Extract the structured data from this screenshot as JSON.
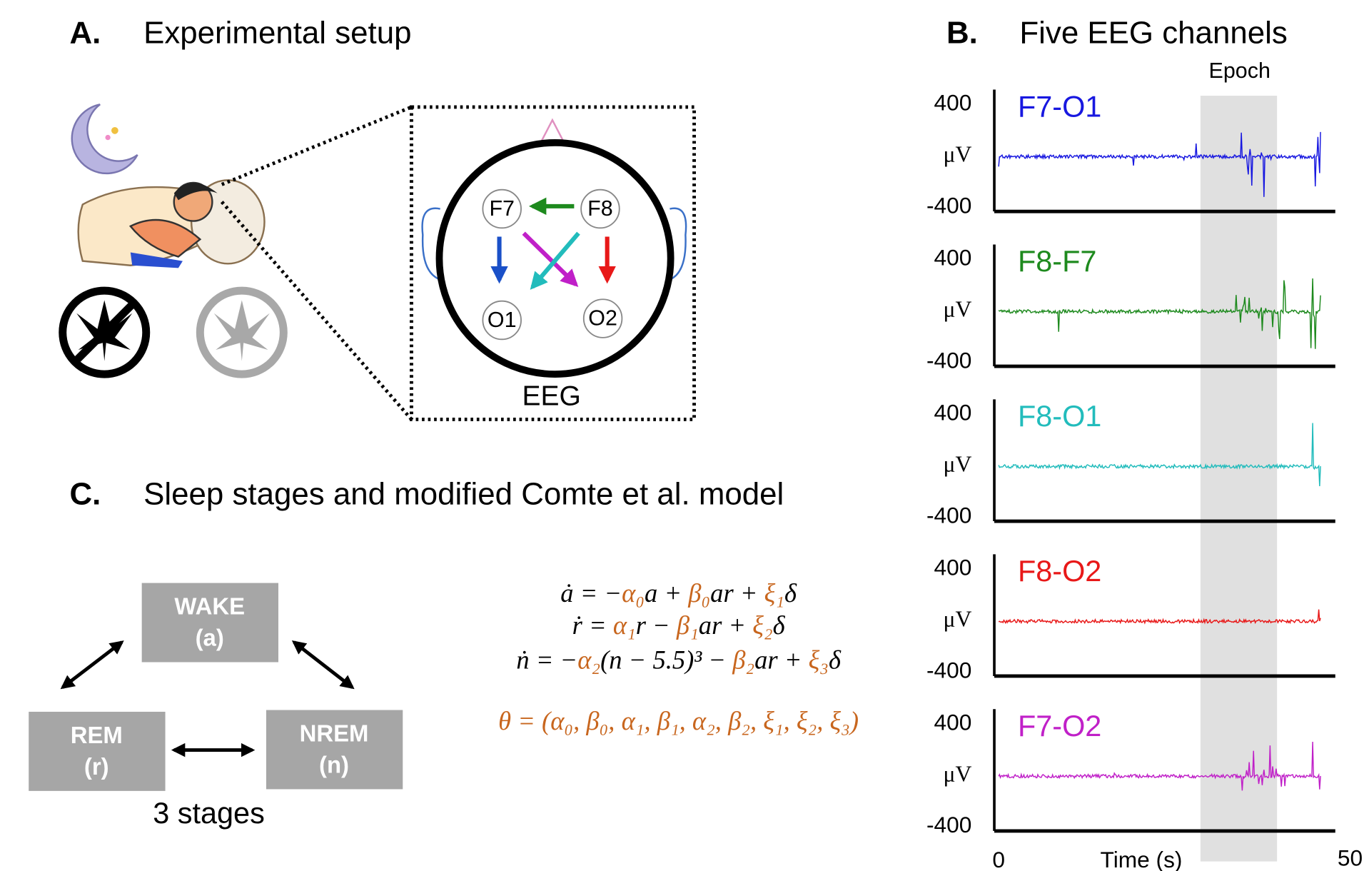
{
  "panel_a": {
    "label": "A.",
    "title": "Experimental setup",
    "eeg_label": "EEG",
    "electrodes": [
      "F7",
      "F8",
      "O1",
      "O2"
    ]
  },
  "panel_b": {
    "label": "B.",
    "title": "Five EEG channels",
    "epoch_label": "Epoch",
    "channels": [
      {
        "name": "F7-O1",
        "color": "#1818e0"
      },
      {
        "name": "F8-F7",
        "color": "#1e8a1e"
      },
      {
        "name": "F8-O1",
        "color": "#22bcbc"
      },
      {
        "name": "F8-O2",
        "color": "#e81818"
      },
      {
        "name": "F7-O2",
        "color": "#c020c8"
      }
    ],
    "y_top": 400,
    "y_unit": "μV",
    "y_bottom": -400,
    "x_start": 0,
    "x_end": 50,
    "x_label": "Time (s)"
  },
  "panel_c": {
    "label": "C.",
    "title": "Sleep stages and modified Comte et al. model",
    "stages": [
      {
        "name": "WAKE",
        "var": "(a)"
      },
      {
        "name": "REM",
        "var": "(r)"
      },
      {
        "name": "NREM",
        "var": "(n)"
      }
    ],
    "stages_caption": "3 stages",
    "highlight_color": "#c8661e",
    "equations": [
      [
        "ȧ = −",
        "α₀",
        "a + ",
        "β₀",
        "ar + ",
        "ξ₁",
        "δ"
      ],
      [
        "ṙ = ",
        "α₁",
        "r − ",
        "β₁",
        "ar + ",
        "ξ₂",
        "δ"
      ],
      [
        "ṅ = −",
        "α₂",
        "(n − 5.5)³ − ",
        "β₂",
        "ar + ",
        "ξ₃",
        "δ"
      ]
    ],
    "theta": [
      "",
      "θ = (α₀, β₀, α₁, β₁, α₂, β₂, ξ₁, ξ₂, ξ₃)"
    ]
  }
}
